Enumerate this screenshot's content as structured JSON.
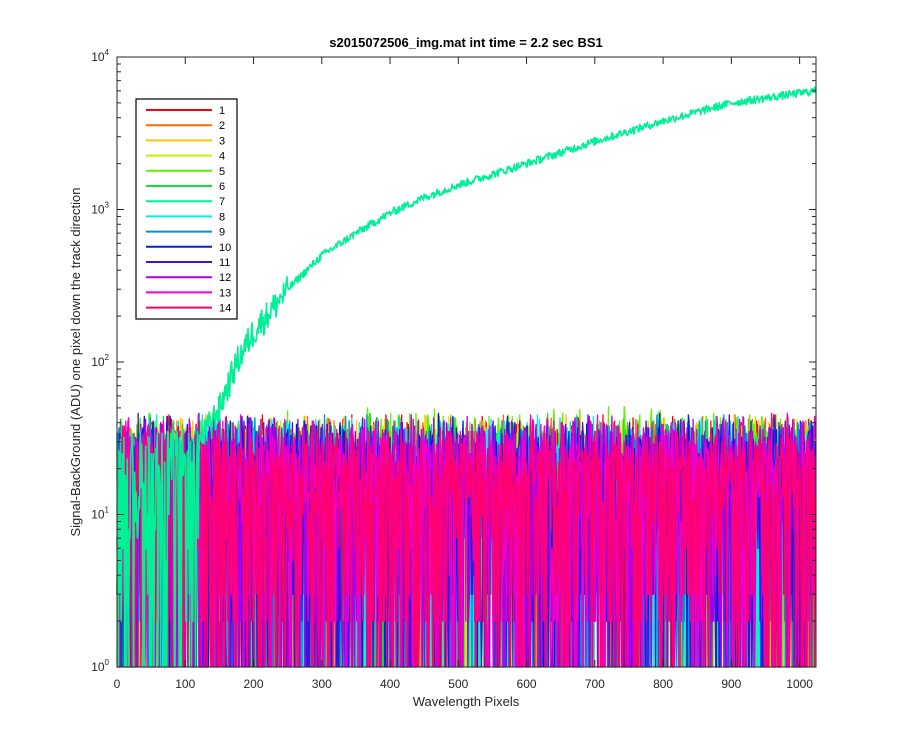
{
  "chart_data": {
    "type": "line",
    "title": "s2015072506_img.mat int time = 2.2 sec   BS1",
    "xlabel": "Wavelength Pixels",
    "ylabel": "Signal-BackGround (ADU) one pixel down the track direction",
    "xlim": [
      0,
      1024
    ],
    "ylim": [
      1,
      10000
    ],
    "yscale": "log",
    "x_ticks": [
      0,
      100,
      200,
      300,
      400,
      500,
      600,
      700,
      800,
      900,
      1000
    ],
    "y_ticks": [
      {
        "value": 1,
        "base": "10",
        "exp": "0"
      },
      {
        "value": 10,
        "base": "10",
        "exp": "1"
      },
      {
        "value": 100,
        "base": "10",
        "exp": "2"
      },
      {
        "value": 1000,
        "base": "10",
        "exp": "3"
      },
      {
        "value": 10000,
        "base": "10",
        "exp": "4"
      }
    ],
    "grid": false,
    "legend_location": "top-left",
    "series": [
      {
        "name": "1",
        "color": "#ff0000",
        "behavior": "noise",
        "noise_range": [
          1,
          45
        ]
      },
      {
        "name": "2",
        "color": "#ff6a00",
        "behavior": "noise",
        "noise_range": [
          1,
          45
        ]
      },
      {
        "name": "3",
        "color": "#ffc800",
        "behavior": "noise",
        "noise_range": [
          1,
          45
        ]
      },
      {
        "name": "4",
        "color": "#c8f000",
        "behavior": "noise",
        "noise_range": [
          1,
          45
        ]
      },
      {
        "name": "5",
        "color": "#60f000",
        "behavior": "noise",
        "noise_range": [
          1,
          50
        ]
      },
      {
        "name": "6",
        "color": "#10e030",
        "behavior": "noise",
        "noise_range": [
          1,
          45
        ]
      },
      {
        "name": "7",
        "color": "#00f098",
        "behavior": "signal",
        "curve": [
          [
            120,
            30
          ],
          [
            150,
            50
          ],
          [
            175,
            100
          ],
          [
            200,
            160
          ],
          [
            250,
            300
          ],
          [
            300,
            500
          ],
          [
            350,
            700
          ],
          [
            400,
            950
          ],
          [
            450,
            1200
          ],
          [
            500,
            1450
          ],
          [
            600,
            2000
          ],
          [
            700,
            2800
          ],
          [
            800,
            3800
          ],
          [
            900,
            5000
          ],
          [
            1000,
            5800
          ],
          [
            1024,
            6000
          ]
        ]
      },
      {
        "name": "8",
        "color": "#00f0f0",
        "behavior": "noise",
        "noise_range": [
          1,
          45
        ]
      },
      {
        "name": "9",
        "color": "#0090e0",
        "behavior": "noise",
        "noise_range": [
          1,
          45
        ]
      },
      {
        "name": "10",
        "color": "#0020e0",
        "behavior": "noise",
        "noise_range": [
          1,
          45
        ]
      },
      {
        "name": "11",
        "color": "#4010e0",
        "behavior": "noise",
        "noise_range": [
          1,
          45
        ]
      },
      {
        "name": "12",
        "color": "#b000e8",
        "behavior": "noise",
        "noise_range": [
          1,
          45
        ]
      },
      {
        "name": "13",
        "color": "#f000c8",
        "behavior": "noise",
        "noise_range": [
          1,
          45
        ]
      },
      {
        "name": "14",
        "color": "#ff0070",
        "behavior": "noise",
        "noise_range": [
          1,
          40
        ]
      }
    ]
  }
}
